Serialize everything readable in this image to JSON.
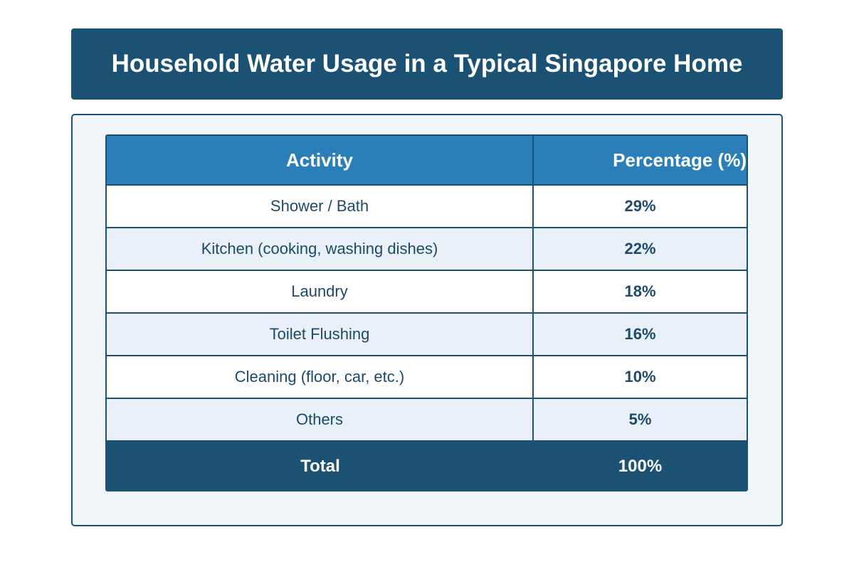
{
  "title": "Household Water Usage in a Typical Singapore Home",
  "colors": {
    "title_bg": "#1b5274",
    "header_bg": "#2a7fb8",
    "row_alt_bg": "#e9f0f7",
    "total_bg": "#1b5274",
    "panel_bg": "#f1f6fb",
    "text": "#1b4a6b"
  },
  "chart_data": {
    "type": "table",
    "title": "Household Water Usage in a Typical Singapore Home",
    "columns": [
      "Activity",
      "Percentage (%)"
    ],
    "rows": [
      {
        "activity": "Shower / Bath",
        "percentage": "29%",
        "value": 29
      },
      {
        "activity": "Kitchen (cooking, washing dishes)",
        "percentage": "22%",
        "value": 22
      },
      {
        "activity": "Laundry",
        "percentage": "18%",
        "value": 18
      },
      {
        "activity": "Toilet Flushing",
        "percentage": "16%",
        "value": 16
      },
      {
        "activity": "Cleaning (floor, car, etc.)",
        "percentage": "10%",
        "value": 10
      },
      {
        "activity": "Others",
        "percentage": "5%",
        "value": 5
      }
    ],
    "total": {
      "label": "Total",
      "percentage": "100%",
      "value": 100
    }
  }
}
